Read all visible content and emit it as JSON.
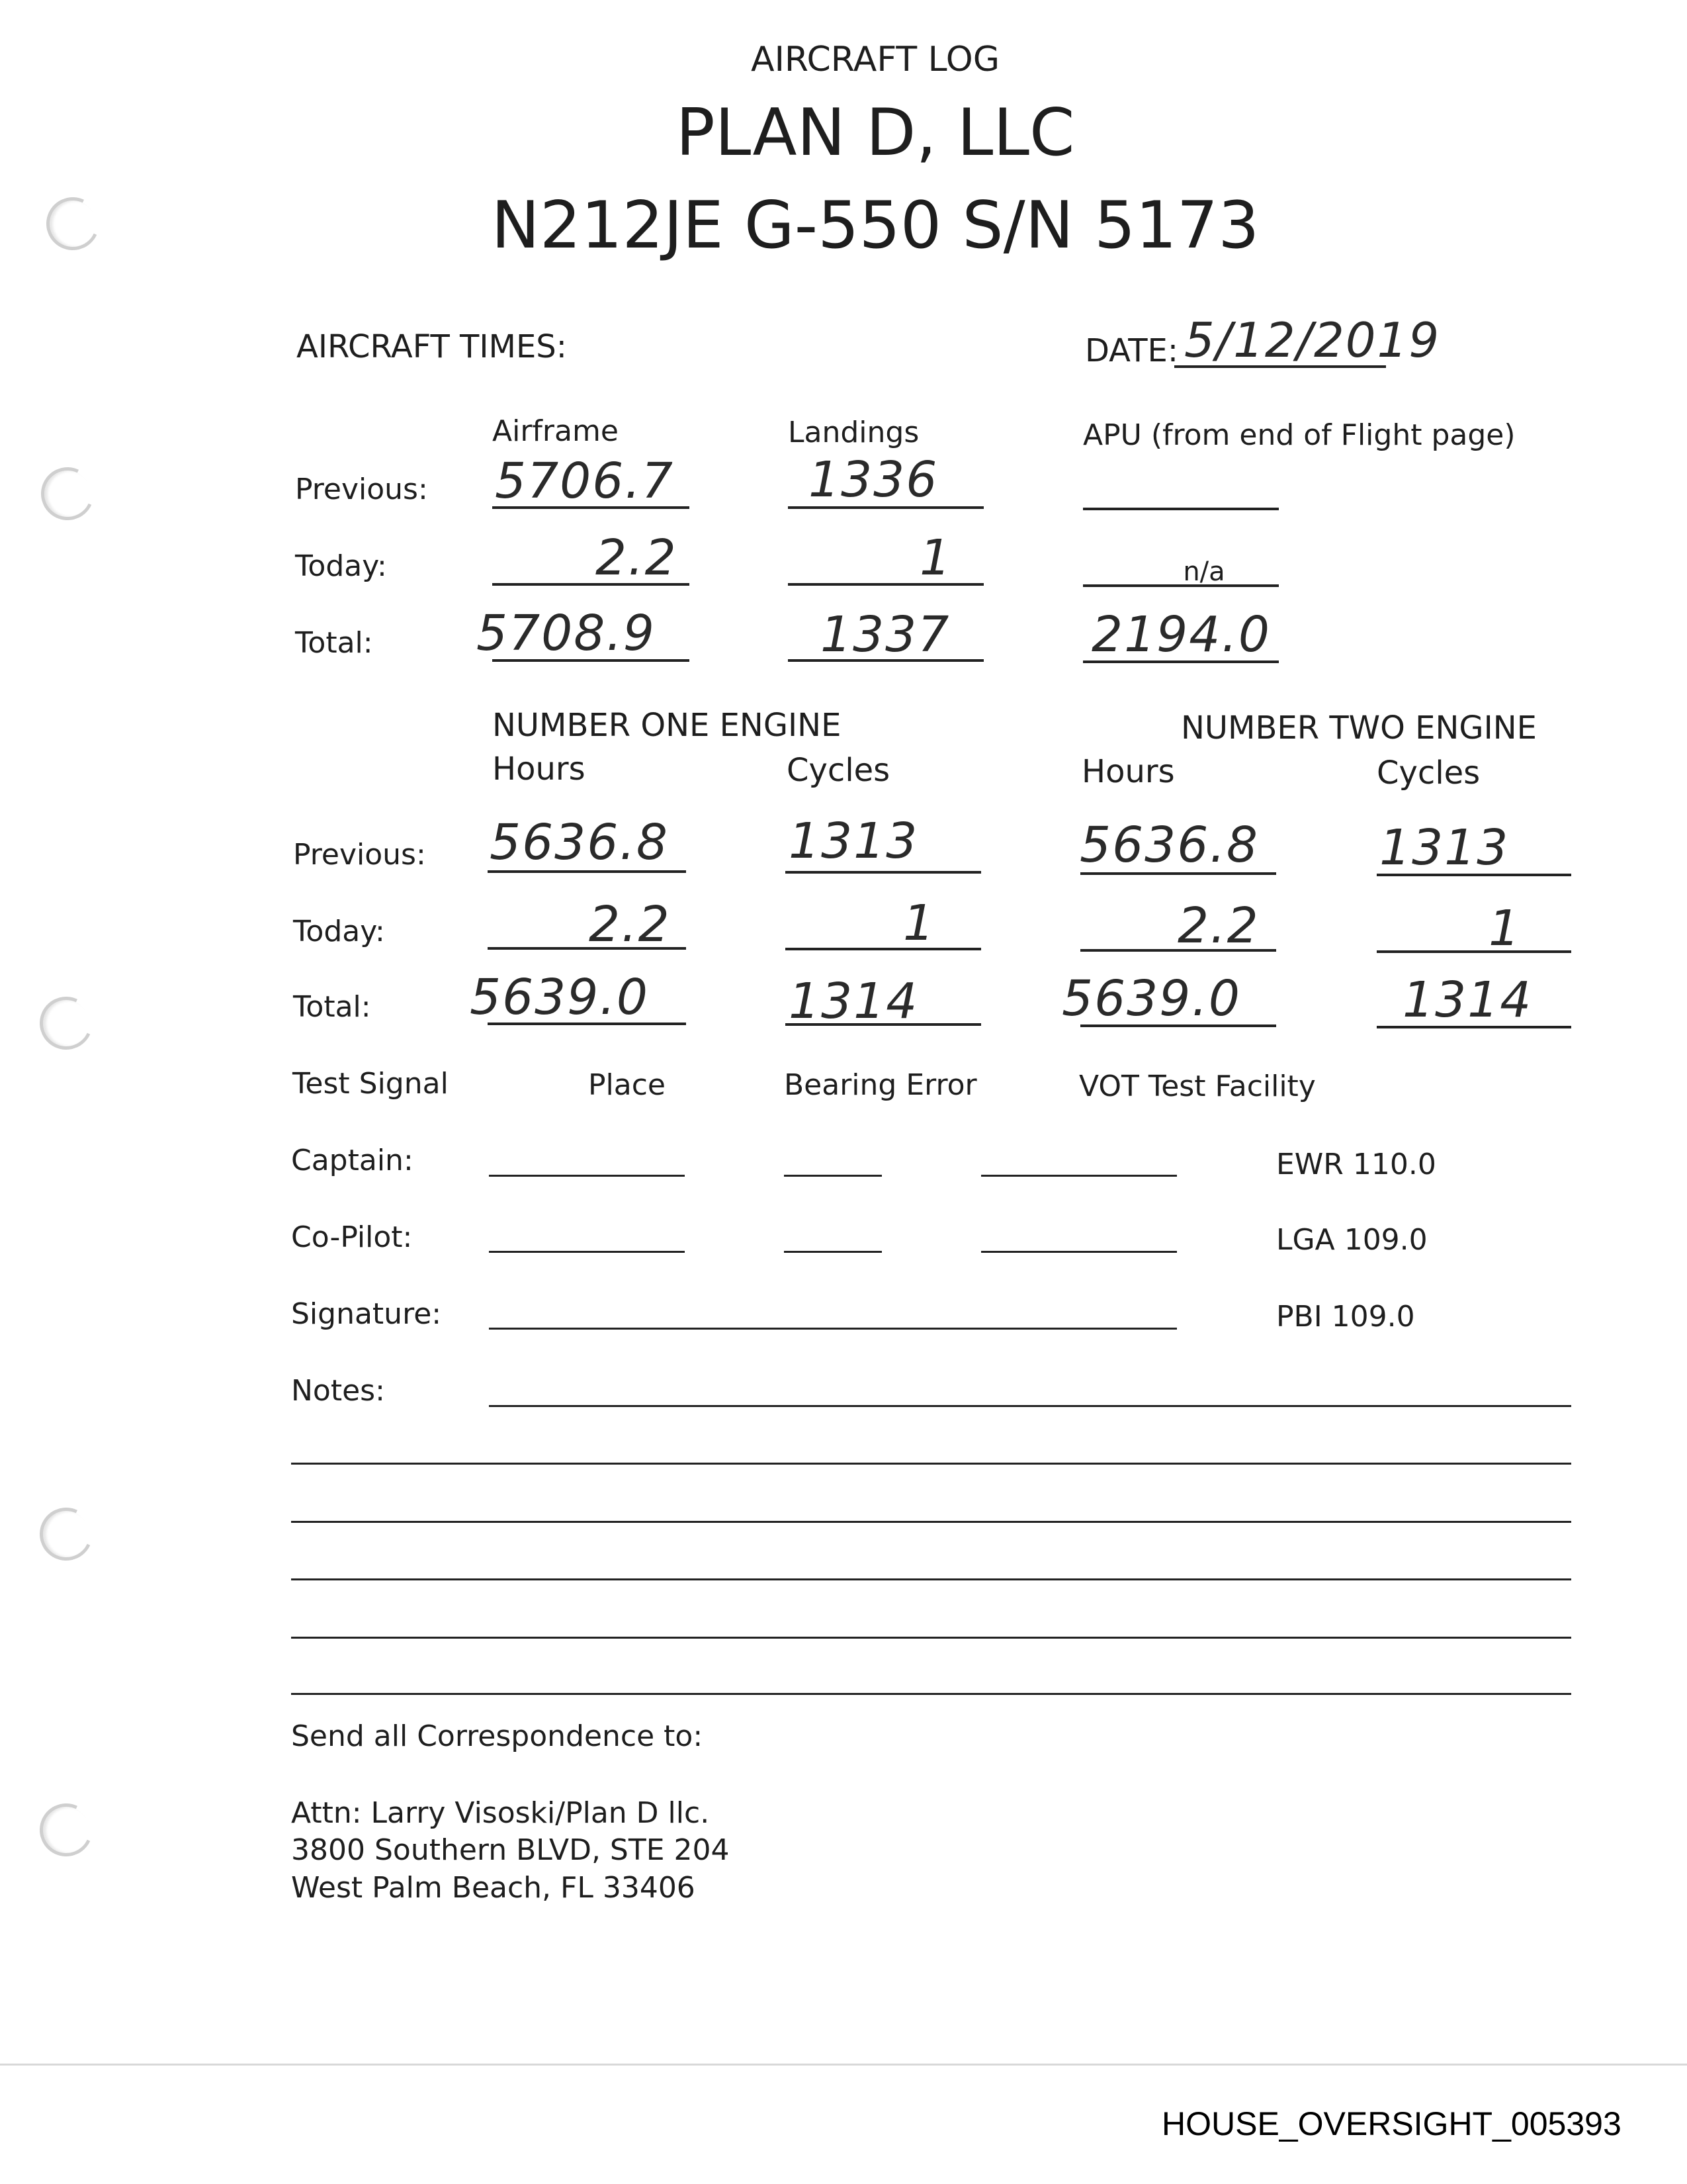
{
  "header": {
    "log_title": "AIRCRAFT LOG",
    "company": "PLAN D, LLC",
    "aircraft": "N212JE G-550 S/N 5173"
  },
  "aircraft_times": {
    "label": "AIRCRAFT TIMES:",
    "date_label": "DATE:",
    "date_value": "5/12/2019",
    "columns": [
      "Airframe",
      "Landings",
      "APU (from end of Flight page)"
    ],
    "row_labels": [
      "Previous:",
      "Today:",
      "Total:"
    ],
    "airframe": {
      "previous": "5706.7",
      "today": "2.2",
      "total": "5708.9"
    },
    "landings": {
      "previous": "1336",
      "today": "1",
      "total": "1337"
    },
    "apu": {
      "previous": "",
      "today": "n/a",
      "total": "2194.0"
    }
  },
  "engines": {
    "engine_one_title": "NUMBER ONE ENGINE",
    "engine_two_title": "NUMBER TWO ENGINE",
    "hours_label": "Hours",
    "cycles_label": "Cycles",
    "row_labels": [
      "Previous:",
      "Today:",
      "Total:"
    ],
    "engine_one": {
      "hours": {
        "previous": "5636.8",
        "today": "2.2",
        "total": "5639.0"
      },
      "cycles": {
        "previous": "1313",
        "today": "1",
        "total": "1314"
      }
    },
    "engine_two": {
      "hours": {
        "previous": "5636.8",
        "today": "2.2",
        "total": "5639.0"
      },
      "cycles": {
        "previous": "1313",
        "today": "1",
        "total": "1314"
      }
    }
  },
  "test_signal": {
    "headers": [
      "Test Signal",
      "Place",
      "Bearing Error",
      "VOT Test Facility"
    ],
    "captain_label": "Captain:",
    "copilot_label": "Co-Pilot:",
    "signature_label": "Signature:",
    "notes_label": "Notes:",
    "facilities": [
      "EWR 110.0",
      "LGA 109.0",
      "PBI 109.0"
    ]
  },
  "correspondence": {
    "heading": "Send all Correspondence to:",
    "lines": [
      "Attn: Larry Visoski/Plan D llc.",
      "3800 Southern BLVD, STE 204",
      "West Palm Beach, FL 33406"
    ]
  },
  "footer": {
    "bates": "HOUSE_OVERSIGHT_005393"
  }
}
